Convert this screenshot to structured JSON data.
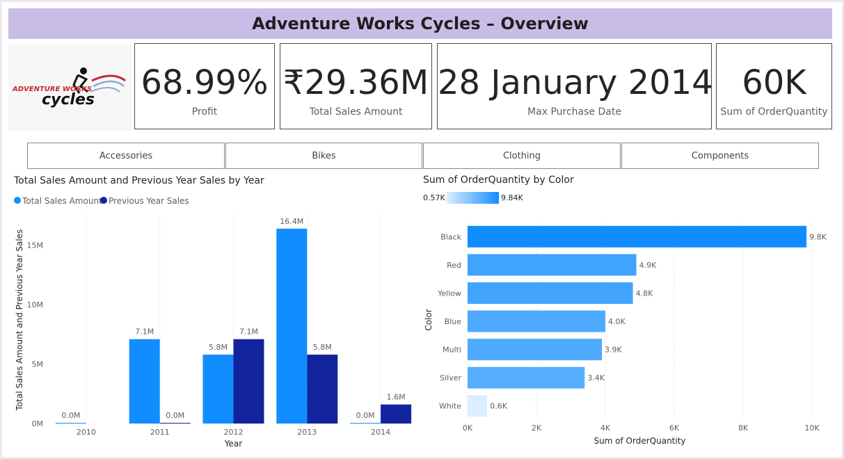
{
  "header": {
    "title": "Adventure Works Cycles – Overview"
  },
  "logo": {
    "text_top": "ADVENTURE WORKS",
    "text_bottom": "cycles",
    "icon": "cyclist-logo-icon"
  },
  "kpis": [
    {
      "value": "68.99%",
      "label": "Profit"
    },
    {
      "value": "₹29.36M",
      "label": "Total Sales Amount"
    },
    {
      "value": "28 January 2014",
      "label": "Max Purchase Date"
    },
    {
      "value": "60K",
      "label": "Sum of OrderQuantity"
    }
  ],
  "slicer": {
    "options": [
      "Accessories",
      "Bikes",
      "Clothing",
      "Components"
    ]
  },
  "colors": {
    "accent": "#118dff",
    "dark_series": "#12239e",
    "header_bg": "#c9bde8"
  },
  "chart_data": [
    {
      "type": "bar",
      "title": "Total Sales Amount and Previous Year Sales by Year",
      "xlabel": "Year",
      "ylabel": "Total Sales Amount and Previous Year Sales",
      "categories": [
        "2010",
        "2011",
        "2012",
        "2013",
        "2014"
      ],
      "series": [
        {
          "name": "Total Sales Amount",
          "color": "#118dff",
          "values": [
            0.0,
            7.1,
            5.8,
            16.4,
            0.0
          ],
          "labels": [
            "0.0M",
            "7.1M",
            "5.8M",
            "16.4M",
            "0.0M"
          ]
        },
        {
          "name": "Previous Year Sales",
          "color": "#12239e",
          "values": [
            null,
            0.0,
            7.1,
            5.8,
            1.6
          ],
          "labels": [
            null,
            "0.0M",
            "7.1M",
            "5.8M",
            "1.6M"
          ]
        }
      ],
      "yticks": [
        "0M",
        "5M",
        "10M",
        "15M"
      ],
      "ylim": [
        0,
        17.5
      ],
      "legend_position": "top-left",
      "grid": true
    },
    {
      "type": "bar",
      "orientation": "horizontal",
      "title": "Sum of OrderQuantity by Color",
      "xlabel": "Sum of OrderQuantity",
      "ylabel": "Color",
      "categories": [
        "Black",
        "Red",
        "Yellow",
        "Blue",
        "Multi",
        "Silver",
        "White"
      ],
      "values": [
        9.84,
        4.9,
        4.8,
        4.0,
        3.9,
        3.4,
        0.57
      ],
      "labels": [
        "9.8K",
        "4.9K",
        "4.8K",
        "4.0K",
        "3.9K",
        "3.4K",
        "0.6K"
      ],
      "xticks": [
        "0K",
        "2K",
        "4K",
        "6K",
        "8K",
        "10K"
      ],
      "xlim": [
        0,
        10
      ],
      "gradient_legend": {
        "min": "0.57K",
        "max": "9.84K",
        "color_min": "#dceeff",
        "color_max": "#118dff"
      },
      "grid": true
    }
  ]
}
